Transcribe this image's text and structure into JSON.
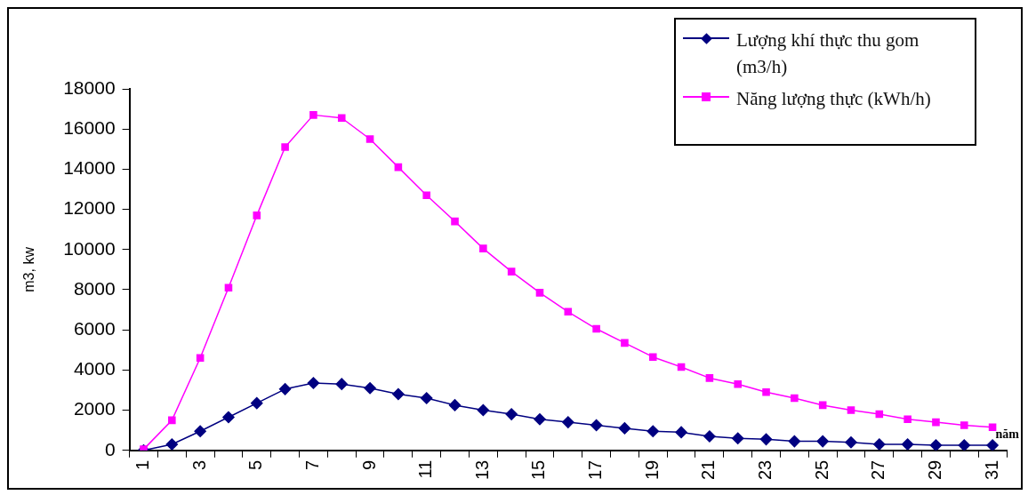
{
  "chart_data": {
    "type": "line",
    "xlabel": "năm",
    "ylabel": "m3, kw",
    "categories": [
      "1",
      null,
      "3",
      null,
      "5",
      null,
      "7",
      null,
      "9",
      null,
      "11",
      null,
      "13",
      null,
      "15",
      null,
      "17",
      null,
      "19",
      null,
      "21",
      null,
      "23",
      null,
      "25",
      null,
      "27",
      null,
      "29",
      null,
      "31"
    ],
    "series": [
      {
        "name": "Lượng khí thực thu gom (m3/h)",
        "color": "#000080",
        "marker": "diamond",
        "values": [
          0,
          300,
          950,
          1650,
          2350,
          3050,
          3350,
          3300,
          3100,
          2800,
          2600,
          2250,
          2000,
          1800,
          1550,
          1400,
          1250,
          1100,
          950,
          900,
          700,
          600,
          550,
          450,
          450,
          400,
          300,
          300,
          250,
          250,
          250
        ]
      },
      {
        "name": "Năng lượng thực (kWh/h)",
        "color": "#ff00ff",
        "marker": "square",
        "values": [
          50,
          1500,
          4600,
          8100,
          11700,
          15100,
          16700,
          16550,
          15500,
          14100,
          12700,
          11400,
          10050,
          8900,
          7850,
          6900,
          6050,
          5350,
          4650,
          4150,
          3600,
          3300,
          2900,
          2600,
          2250,
          2000,
          1800,
          1550,
          1400,
          1250,
          1150
        ]
      }
    ],
    "ylim": [
      0,
      18000
    ],
    "yticks": [
      0,
      2000,
      4000,
      6000,
      8000,
      10000,
      12000,
      14000,
      16000,
      18000
    ],
    "grid": false,
    "legend": "top right"
  }
}
